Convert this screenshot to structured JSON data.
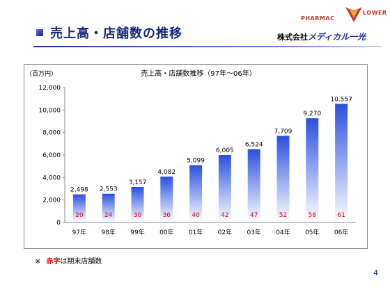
{
  "header": {
    "title": "売上高・店舗数の推移",
    "logo_pharmac": "PHARMAC",
    "logo_lower": "LOWER",
    "company_prefix": "株式会社",
    "company_brand": "メディカル一光"
  },
  "chart_data": {
    "type": "bar",
    "title": "売上高・店舗数推移（97年～06年）",
    "ylabel": "（百万円）",
    "ylim": [
      0,
      12000
    ],
    "yticks": [
      "0",
      "2,000",
      "4,000",
      "6,000",
      "8,000",
      "10,000",
      "12,000"
    ],
    "categories": [
      "97年",
      "98年",
      "99年",
      "00年",
      "01年",
      "02年",
      "03年",
      "04年",
      "05年",
      "06年"
    ],
    "series": [
      {
        "values": [
          2498,
          2553,
          3157,
          4082,
          5099,
          6005,
          6524,
          7709,
          9270,
          10557
        ],
        "labels": [
          "2,498",
          "2,553",
          "3,157",
          "4,082",
          "5,099",
          "6,005",
          "6,524",
          "7,709",
          "9,270",
          "10,557"
        ]
      }
    ],
    "store_counts": [
      "20",
      "24",
      "30",
      "36",
      "40",
      "42",
      "47",
      "52",
      "58",
      "61"
    ],
    "grid": false,
    "legend": "none",
    "colors": {
      "bar_top": "#2a4fe0",
      "bar_bottom": "#ffffff",
      "store_count": "#e00000"
    }
  },
  "footnote": {
    "mark": "※",
    "red_text": "赤字",
    "rest": "は期末店舗数"
  },
  "page_number": "4"
}
